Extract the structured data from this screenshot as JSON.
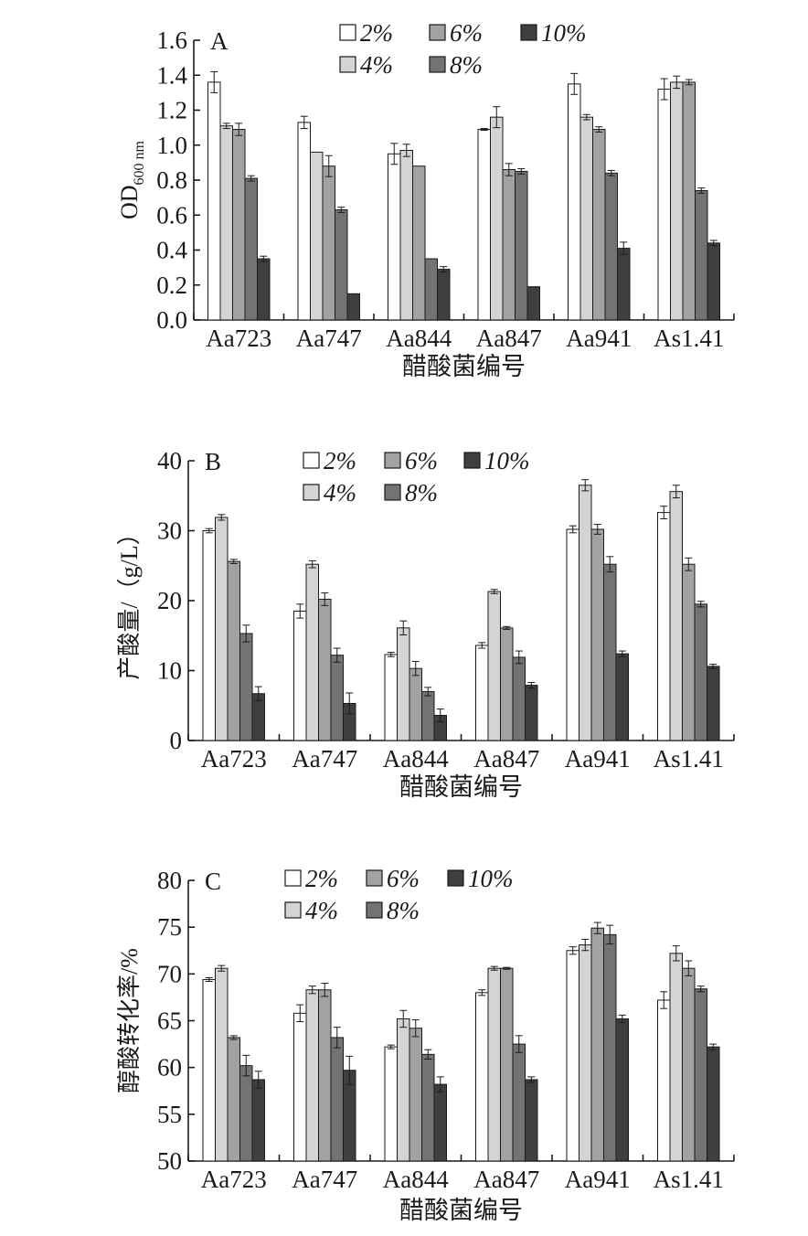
{
  "colors": {
    "2%": "#ffffff",
    "4%": "#d4d4d4",
    "6%": "#a2a2a2",
    "8%": "#737373",
    "10%": "#3f3f3f",
    "stroke": "#1a1a1a"
  },
  "chart_data": [
    {
      "type": "bar",
      "panel": "A",
      "title": "",
      "ylabel_main": "OD",
      "ylabel_sub": "600 nm",
      "xlabel": "醋酸菌编号",
      "ylim": [
        0,
        1.6
      ],
      "yticks": [
        "0.0",
        "0.2",
        "0.4",
        "0.6",
        "0.8",
        "1.0",
        "1.2",
        "1.4",
        "1.6"
      ],
      "categories": [
        "Aa723",
        "Aa747",
        "Aa844",
        "Aa847",
        "Aa941",
        "As1.41"
      ],
      "legend_placement": "top",
      "series": [
        {
          "name": "2%",
          "values": [
            1.36,
            1.13,
            0.95,
            1.09,
            1.35,
            1.32
          ],
          "errors": [
            0.06,
            0.035,
            0.06,
            0.005,
            0.06,
            0.06
          ]
        },
        {
          "name": "4%",
          "values": [
            1.11,
            0.96,
            0.97,
            1.16,
            1.16,
            1.36
          ],
          "errors": [
            0.015,
            0.0,
            0.035,
            0.06,
            0.015,
            0.035
          ]
        },
        {
          "name": "6%",
          "values": [
            1.09,
            0.88,
            0.88,
            0.86,
            1.09,
            1.36
          ],
          "errors": [
            0.035,
            0.06,
            0.0,
            0.035,
            0.015,
            0.015
          ]
        },
        {
          "name": "8%",
          "values": [
            0.81,
            0.63,
            0.35,
            0.85,
            0.84,
            0.74
          ],
          "errors": [
            0.015,
            0.015,
            0.0,
            0.015,
            0.015,
            0.015
          ]
        },
        {
          "name": "10%",
          "values": [
            0.35,
            0.15,
            0.29,
            0.19,
            0.41,
            0.44
          ],
          "errors": [
            0.015,
            0.0,
            0.015,
            0.0,
            0.035,
            0.015
          ]
        }
      ]
    },
    {
      "type": "bar",
      "panel": "B",
      "title": "",
      "ylabel_main": "产酸量/（g/L）",
      "ylabel_sub": "",
      "xlabel": "醋酸菌编号",
      "ylim": [
        0,
        40
      ],
      "yticks": [
        "0",
        "10",
        "20",
        "30",
        "40"
      ],
      "categories": [
        "Aa723",
        "Aa747",
        "Aa844",
        "Aa847",
        "Aa941",
        "As1.41"
      ],
      "legend_placement": "top",
      "series": [
        {
          "name": "2%",
          "values": [
            30.0,
            18.5,
            12.3,
            13.6,
            30.2,
            32.6
          ],
          "errors": [
            0.3,
            1.0,
            0.3,
            0.4,
            0.5,
            0.9
          ]
        },
        {
          "name": "4%",
          "values": [
            31.9,
            25.2,
            16.1,
            21.3,
            36.5,
            35.6
          ],
          "errors": [
            0.4,
            0.5,
            1.0,
            0.3,
            0.8,
            0.9
          ]
        },
        {
          "name": "6%",
          "values": [
            25.6,
            20.2,
            10.3,
            16.1,
            30.2,
            25.2
          ],
          "errors": [
            0.3,
            0.9,
            1.0,
            0.2,
            0.7,
            0.9
          ]
        },
        {
          "name": "8%",
          "values": [
            15.3,
            12.2,
            7.0,
            11.9,
            25.2,
            19.5
          ],
          "errors": [
            1.2,
            1.0,
            0.6,
            0.9,
            1.1,
            0.4
          ]
        },
        {
          "name": "10%",
          "values": [
            6.7,
            5.3,
            3.6,
            7.9,
            12.4,
            10.6
          ],
          "errors": [
            1.0,
            1.5,
            0.9,
            0.4,
            0.4,
            0.3
          ]
        }
      ]
    },
    {
      "type": "bar",
      "panel": "C",
      "title": "",
      "ylabel_main": "醇酸转化率/%",
      "ylabel_sub": "",
      "xlabel": "醋酸菌编号",
      "ylim": [
        50,
        80
      ],
      "yticks": [
        "50",
        "55",
        "60",
        "65",
        "70",
        "75",
        "80"
      ],
      "categories": [
        "Aa723",
        "Aa747",
        "Aa844",
        "Aa847",
        "Aa941",
        "As1.41"
      ],
      "legend_placement": "top",
      "series": [
        {
          "name": "2%",
          "values": [
            69.4,
            65.8,
            62.2,
            68.0,
            72.5,
            67.2
          ],
          "errors": [
            0.2,
            0.9,
            0.2,
            0.3,
            0.4,
            0.9
          ]
        },
        {
          "name": "4%",
          "values": [
            70.6,
            68.3,
            65.2,
            70.6,
            73.1,
            72.2
          ],
          "errors": [
            0.3,
            0.4,
            0.9,
            0.2,
            0.6,
            0.8
          ]
        },
        {
          "name": "6%",
          "values": [
            63.2,
            68.3,
            64.2,
            70.6,
            74.9,
            70.6
          ],
          "errors": [
            0.2,
            0.7,
            0.9,
            0.1,
            0.6,
            0.8
          ]
        },
        {
          "name": "8%",
          "values": [
            60.2,
            63.2,
            61.4,
            62.5,
            74.2,
            68.4
          ],
          "errors": [
            1.1,
            1.1,
            0.5,
            0.9,
            1.0,
            0.3
          ]
        },
        {
          "name": "10%",
          "values": [
            58.7,
            59.7,
            58.2,
            58.7,
            65.2,
            62.2
          ],
          "errors": [
            0.9,
            1.5,
            0.8,
            0.3,
            0.4,
            0.3
          ]
        }
      ]
    }
  ]
}
